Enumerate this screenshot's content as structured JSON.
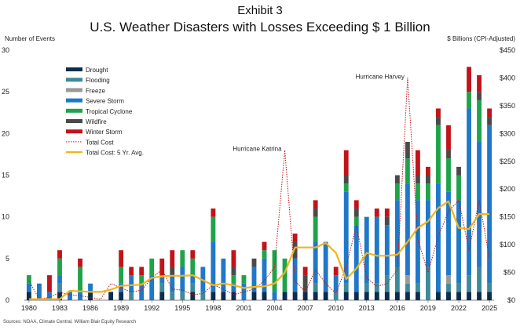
{
  "chart_data": {
    "type": "bar",
    "exhibit": "Exhibit 3",
    "title": "U.S. Weather Disasters with Losses Exceeding $ 1 Billion",
    "left_axis_label": "Number of Events",
    "right_axis_label": "$ Billions (CPI-Adjusted)",
    "source": "Sources: NOAA, Climate Central, William Blair Equity Research",
    "y_left_range": [
      0,
      30
    ],
    "y_left_ticks": [
      0,
      5,
      10,
      15,
      20,
      25,
      30
    ],
    "y_right_range": [
      0,
      450
    ],
    "y_right_ticks": [
      "$0",
      "$50",
      "$100",
      "$150",
      "$200",
      "$250",
      "$300",
      "$350",
      "$400",
      "$450"
    ],
    "x_tick_labels": [
      "1980",
      "1983",
      "1986",
      "1989",
      "1992",
      "1995",
      "1998",
      "2001",
      "2004",
      "2007",
      "2010",
      "2013",
      "2016",
      "2019",
      "2022",
      "2025"
    ],
    "years": [
      1980,
      1981,
      1982,
      1983,
      1984,
      1985,
      1986,
      1987,
      1988,
      1989,
      1990,
      1991,
      1992,
      1993,
      1994,
      1995,
      1996,
      1997,
      1998,
      1999,
      2000,
      2001,
      2002,
      2003,
      2004,
      2005,
      2006,
      2007,
      2008,
      2009,
      2010,
      2011,
      2012,
      2013,
      2014,
      2015,
      2016,
      2017,
      2018,
      2019,
      2020,
      2021,
      2022,
      2023,
      2024,
      2025
    ],
    "stacked": true,
    "grid": false,
    "legend_position": "top-left",
    "series": [
      {
        "name": "Drought",
        "color": "#0b2d4e",
        "values": [
          1,
          0,
          0,
          1,
          0,
          0,
          1,
          0,
          1,
          1,
          0,
          0,
          0,
          1,
          0,
          0,
          1,
          0,
          1,
          1,
          1,
          0,
          1,
          1,
          0,
          1,
          1,
          1,
          1,
          1,
          0,
          1,
          1,
          1,
          1,
          1,
          1,
          1,
          1,
          0,
          1,
          1,
          1,
          1,
          1,
          1
        ]
      },
      {
        "name": "Flooding",
        "color": "#3e8a9c",
        "values": [
          0,
          0,
          0,
          1,
          0,
          0,
          0,
          0,
          0,
          0,
          1,
          0,
          0,
          1,
          1,
          1,
          1,
          1,
          0,
          0,
          0,
          0,
          0,
          0,
          0,
          0,
          0,
          0,
          1,
          0,
          1,
          1,
          0,
          1,
          1,
          2,
          3,
          1,
          1,
          4,
          0,
          1,
          1,
          2,
          3,
          1
        ]
      },
      {
        "name": "Freeze",
        "color": "#9a9a9a",
        "values": [
          0,
          0,
          0,
          0,
          0,
          0,
          0,
          0,
          0,
          0,
          0,
          0,
          0,
          0,
          0,
          0,
          0,
          0,
          0,
          0,
          0,
          0,
          0,
          0,
          0,
          0,
          0,
          0,
          0,
          0,
          0,
          0,
          0,
          0,
          0,
          0,
          0,
          1,
          0,
          0,
          0,
          1,
          0,
          0,
          0,
          0
        ]
      },
      {
        "name": "Severe Storm",
        "color": "#1f78c8",
        "values": [
          1,
          2,
          1,
          1,
          1,
          1,
          1,
          0,
          0,
          1,
          2,
          2,
          3,
          1,
          2,
          3,
          1,
          3,
          6,
          4,
          1,
          2,
          3,
          4,
          1,
          0,
          4,
          0,
          5,
          6,
          2,
          11,
          8,
          8,
          8,
          6,
          8,
          11,
          10,
          8,
          13,
          10,
          10,
          20,
          15,
          19
        ]
      },
      {
        "name": "Tropical Cyclone",
        "color": "#1fa34a",
        "values": [
          1,
          0,
          0,
          2,
          0,
          3,
          0,
          0,
          0,
          2,
          0,
          1,
          2,
          0,
          0,
          2,
          2,
          0,
          3,
          0,
          1,
          1,
          0,
          1,
          5,
          4,
          0,
          0,
          3,
          0,
          0,
          1,
          1,
          0,
          0,
          0,
          2,
          3,
          2,
          2,
          7,
          4,
          3,
          2,
          5,
          0
        ]
      },
      {
        "name": "Wildfire",
        "color": "#4a4a4a",
        "values": [
          0,
          0,
          0,
          0,
          0,
          0,
          0,
          0,
          0,
          0,
          0,
          0,
          0,
          0,
          1,
          0,
          0,
          0,
          0,
          0,
          1,
          0,
          1,
          0,
          0,
          0,
          2,
          2,
          1,
          0,
          0,
          1,
          1,
          0,
          0,
          1,
          1,
          2,
          1,
          1,
          1,
          1,
          1,
          0,
          1,
          1
        ]
      },
      {
        "name": "Winter Storm",
        "color": "#c0141a",
        "values": [
          0,
          0,
          2,
          1,
          0,
          1,
          0,
          0,
          0,
          2,
          1,
          1,
          0,
          2,
          2,
          0,
          1,
          0,
          1,
          0,
          2,
          0,
          0,
          1,
          0,
          0,
          1,
          1,
          1,
          0,
          1,
          3,
          1,
          0,
          1,
          1,
          0,
          0,
          3,
          1,
          1,
          3,
          0,
          3,
          2,
          1
        ]
      }
    ],
    "lines": [
      {
        "name": "Total Cost",
        "color": "#c0141a",
        "style": "dotted",
        "values": [
          35,
          2,
          5,
          14,
          10,
          8,
          5,
          2,
          30,
          22,
          15,
          18,
          40,
          55,
          20,
          18,
          10,
          12,
          28,
          20,
          10,
          15,
          20,
          35,
          60,
          270,
          35,
          15,
          55,
          30,
          12,
          60,
          135,
          40,
          25,
          30,
          55,
          400,
          110,
          50,
          115,
          160,
          180,
          90,
          180,
          75
        ]
      },
      {
        "name": "Total Cost: 5 Yr. Avg.",
        "color": "#f4b41a",
        "style": "solid",
        "values": [
          2,
          2,
          2,
          2,
          17,
          16,
          15,
          15,
          19,
          26,
          27,
          28,
          40,
          43,
          44,
          44,
          45,
          36,
          27,
          30,
          27,
          22,
          24,
          25,
          30,
          50,
          95,
          95,
          95,
          103,
          85,
          38,
          57,
          85,
          80,
          80,
          82,
          105,
          130,
          142,
          166,
          178,
          130,
          128,
          155,
          155
        ]
      }
    ],
    "annotations": [
      {
        "text": "Hurricane Katrina",
        "year": 2005
      },
      {
        "text": "Hurricane Harvey",
        "year": 2017
      }
    ]
  }
}
